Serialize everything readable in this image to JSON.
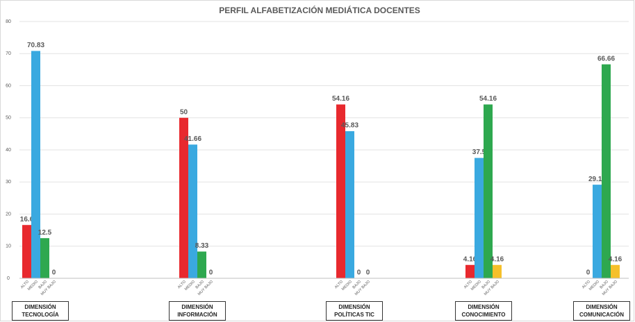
{
  "chart_data": {
    "type": "bar",
    "title": "PERFIL ALFABETIZACIÓN MEDIÁTICA DOCENTES",
    "categories": [
      "DIMENSIÓN TECNOLOGÍA",
      "DIMENSIÓN INFORMACIÓN",
      "DIMENSIÓN POLÍTICAS TIC",
      "DIMENSIÓN CONOCIMIENTO",
      "DIMENSIÓN COMUNICACIÓN"
    ],
    "series": [
      {
        "name": "ALTO",
        "color": "#e8292e",
        "values": [
          16.6,
          50,
          54.16,
          4.16,
          0
        ]
      },
      {
        "name": "MEDIO",
        "color": "#3aa9e0",
        "values": [
          70.83,
          41.66,
          45.83,
          37.5,
          29.16
        ]
      },
      {
        "name": "BAJO",
        "color": "#2ea84f",
        "values": [
          12.5,
          8.33,
          0,
          54.16,
          66.66
        ]
      },
      {
        "name": "MUY BAJO",
        "color": "#f5c02a",
        "values": [
          0,
          0,
          0,
          4.16,
          4.16
        ]
      }
    ],
    "ylim": [
      0,
      80
    ],
    "yticks": [
      0,
      10,
      20,
      30,
      40,
      50,
      60,
      70,
      80
    ],
    "grid": true
  }
}
